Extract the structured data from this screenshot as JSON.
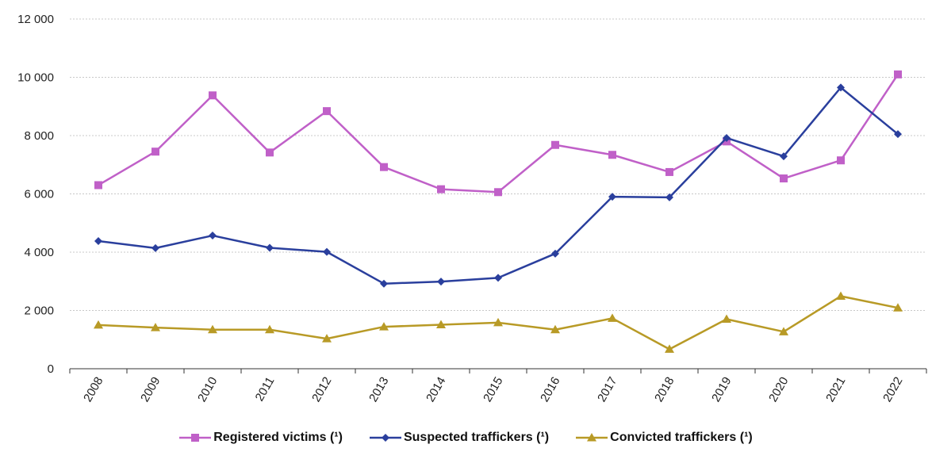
{
  "chart_data": {
    "type": "line",
    "categories": [
      "2008",
      "2009",
      "2010",
      "2011",
      "2012",
      "2013",
      "2014",
      "2015",
      "2016",
      "2017",
      "2018",
      "2019",
      "2020",
      "2021",
      "2022"
    ],
    "ylim": [
      0,
      12000
    ],
    "yticks": [
      0,
      2000,
      4000,
      6000,
      8000,
      10000,
      12000
    ],
    "ytick_labels": [
      "0",
      "2 000",
      "4 000",
      "6 000",
      "8 000",
      "10 000",
      "12 000"
    ],
    "grid": true,
    "legend_position": "bottom",
    "series": [
      {
        "name": "Registered victims (¹)",
        "color": "#c060c8",
        "marker": "square",
        "values": [
          6300,
          7450,
          9380,
          7420,
          8840,
          6920,
          6160,
          6060,
          7680,
          7340,
          6750,
          7800,
          6530,
          7150,
          10100
        ]
      },
      {
        "name": "Suspected traffickers (¹)",
        "color": "#2a3f9d",
        "marker": "diamond",
        "values": [
          4380,
          4140,
          4570,
          4150,
          4010,
          2920,
          2990,
          3120,
          3950,
          5900,
          5880,
          7920,
          7290,
          9650,
          8050
        ]
      },
      {
        "name": "Convicted traffickers (¹)",
        "color": "#b89a26",
        "marker": "triangle",
        "values": [
          1500,
          1410,
          1340,
          1340,
          1030,
          1440,
          1510,
          1580,
          1340,
          1730,
          670,
          1700,
          1270,
          2490,
          2090
        ]
      }
    ]
  }
}
